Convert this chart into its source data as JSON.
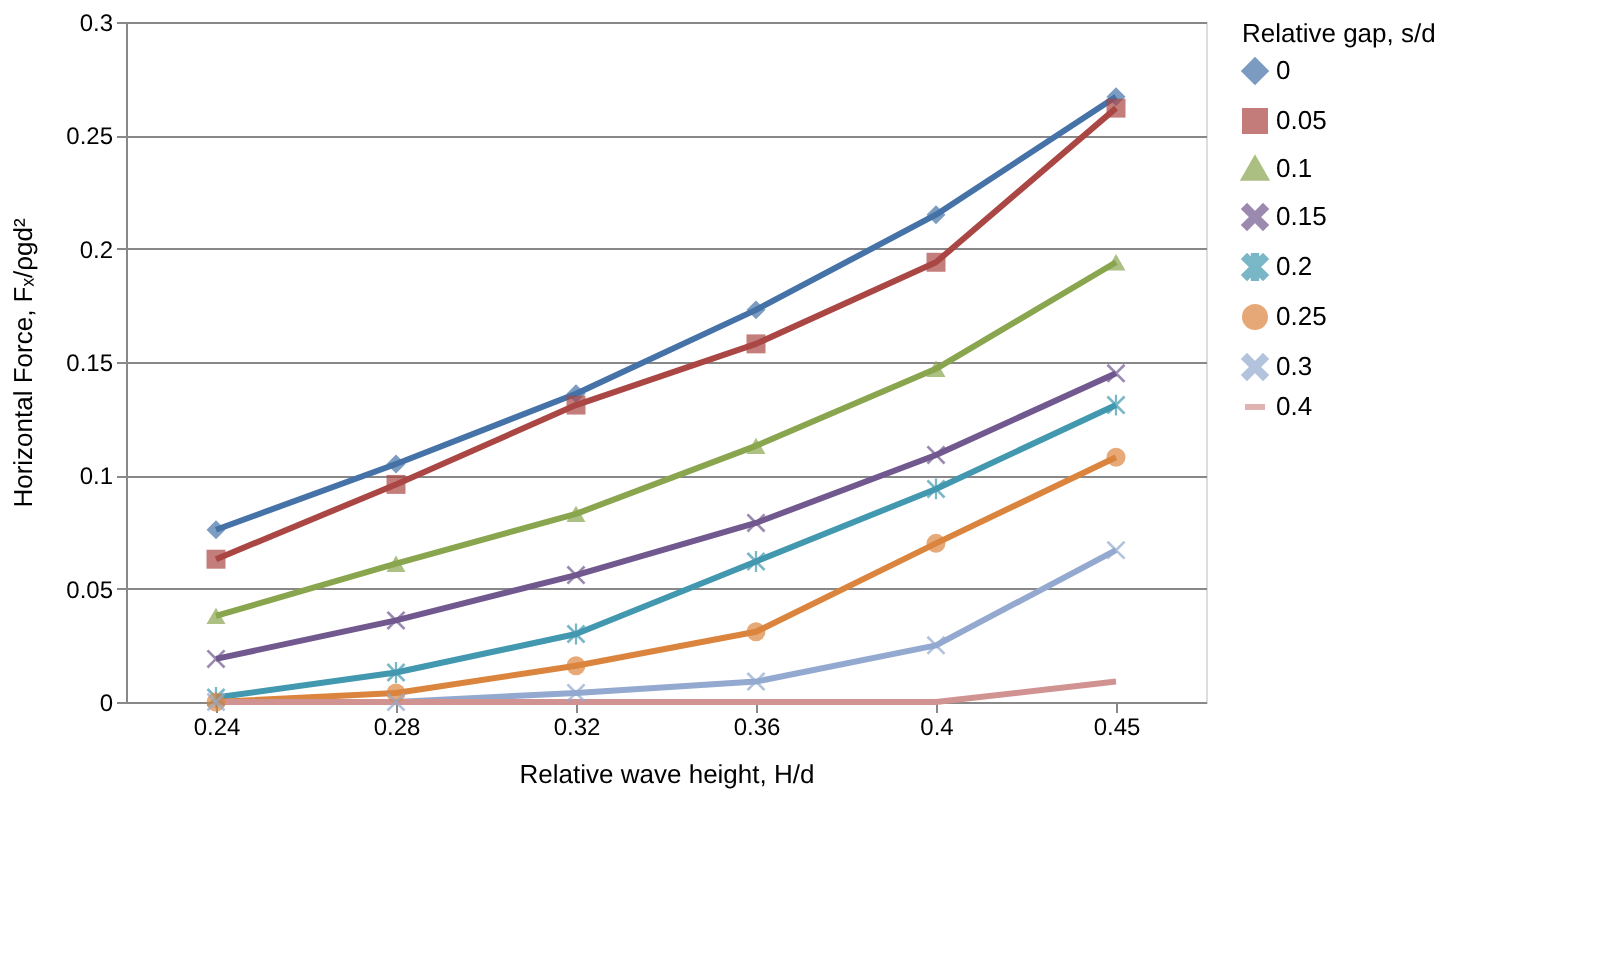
{
  "chart_data": {
    "type": "line",
    "xlabel": "Relative wave height, H/d",
    "ylabel": "Horizontal Force, Fₓ/ρgd²",
    "legend_title": "Relative gap, s/d",
    "categories": [
      "0.24",
      "0.28",
      "0.32",
      "0.36",
      "0.4",
      "0.45"
    ],
    "ylim": [
      0,
      0.3
    ],
    "yticks": [
      0,
      0.05,
      0.1,
      0.15,
      0.2,
      0.25,
      0.3
    ],
    "grid": "y",
    "legend": "right",
    "line_style": "solid",
    "series": [
      {
        "name": "0",
        "color": "#4572a7",
        "marker": "diamond",
        "values": [
          0.076,
          0.105,
          0.136,
          0.173,
          0.215,
          0.267
        ]
      },
      {
        "name": "0.05",
        "color": "#aa4643",
        "marker": "square",
        "values": [
          0.063,
          0.096,
          0.131,
          0.158,
          0.194,
          0.262
        ]
      },
      {
        "name": "0.1",
        "color": "#89a54e",
        "marker": "triangle",
        "values": [
          0.038,
          0.061,
          0.083,
          0.113,
          0.147,
          0.194
        ]
      },
      {
        "name": "0.15",
        "color": "#71588f",
        "marker": "cross",
        "values": [
          0.019,
          0.036,
          0.056,
          0.079,
          0.109,
          0.145
        ]
      },
      {
        "name": "0.2",
        "color": "#4198af",
        "marker": "star",
        "values": [
          0.002,
          0.013,
          0.03,
          0.062,
          0.094,
          0.131
        ]
      },
      {
        "name": "0.25",
        "color": "#db843d",
        "marker": "circle",
        "values": [
          0.0,
          0.004,
          0.016,
          0.031,
          0.07,
          0.108
        ]
      },
      {
        "name": "0.3",
        "color": "#93a9cf",
        "marker": "cross",
        "values": [
          0.0,
          0.0,
          0.004,
          0.009,
          0.025,
          0.067
        ]
      },
      {
        "name": "0.4",
        "color": "#d19392",
        "marker": "none",
        "values": [
          0.0,
          0.0,
          0.0,
          0.0,
          0.0,
          0.009
        ]
      }
    ]
  }
}
